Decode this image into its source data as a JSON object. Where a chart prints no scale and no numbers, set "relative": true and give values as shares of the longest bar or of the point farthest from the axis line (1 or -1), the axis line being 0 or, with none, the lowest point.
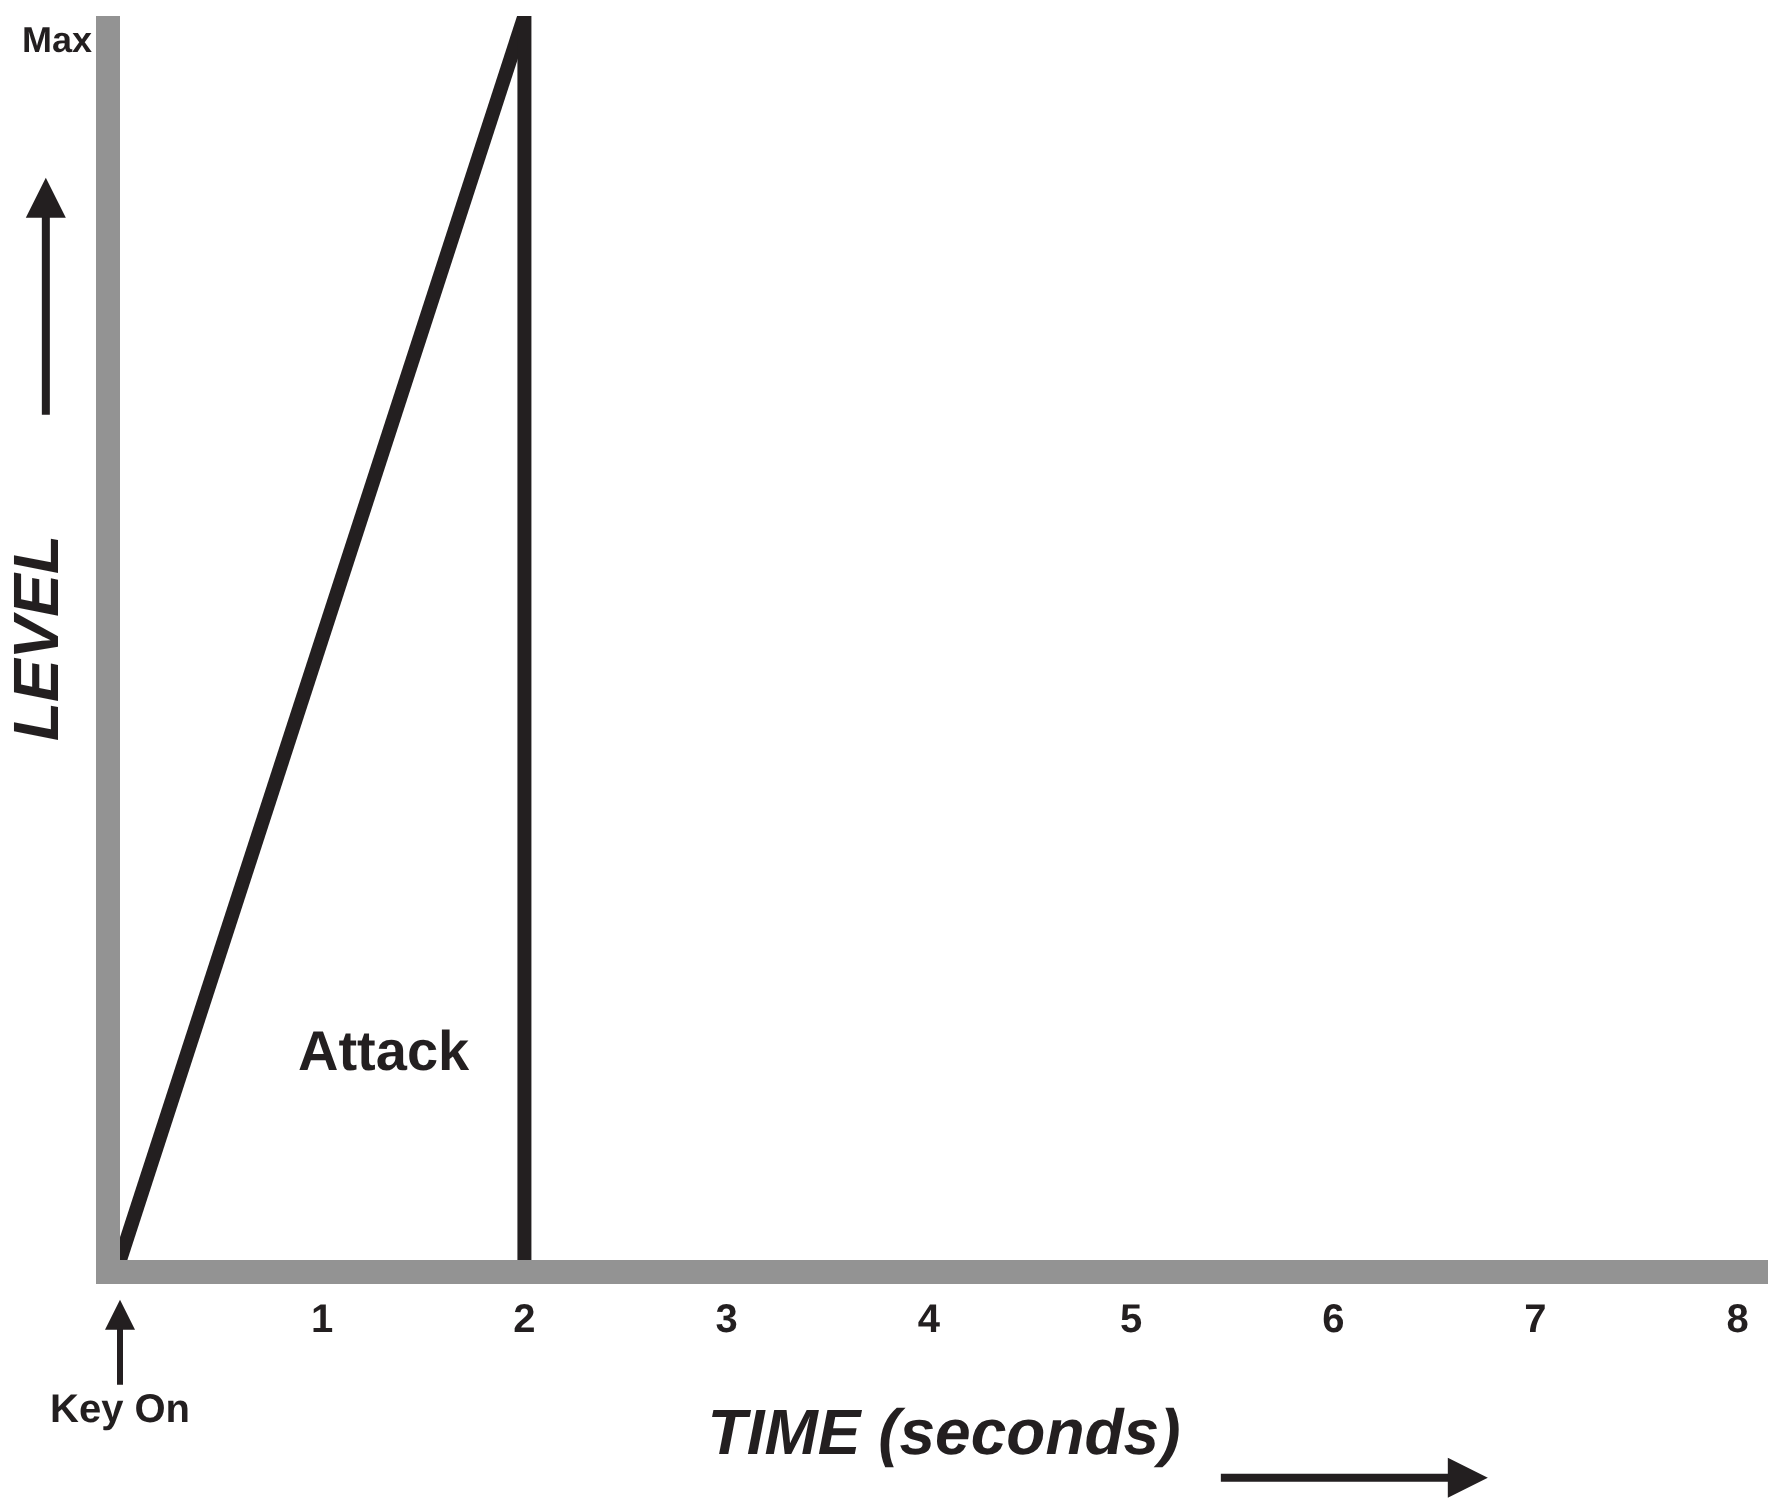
{
  "chart_data": {
    "type": "line",
    "relative": true,
    "xlabel": "TIME (seconds)",
    "ylabel": "LEVEL",
    "x": [
      0,
      2
    ],
    "series": [
      {
        "color": "#231f20",
        "values": [
          0,
          1
        ]
      }
    ],
    "xlim": [
      0,
      8.15
    ],
    "xticks": [
      1,
      2,
      3,
      4,
      5,
      6,
      7,
      8
    ],
    "ref_lines": [
      {
        "axis": "x",
        "value": 2,
        "color": "#231f20"
      }
    ],
    "annotations": [
      "Max",
      "Key On",
      "Attack"
    ],
    "marker": "none",
    "line_style": "solid"
  }
}
